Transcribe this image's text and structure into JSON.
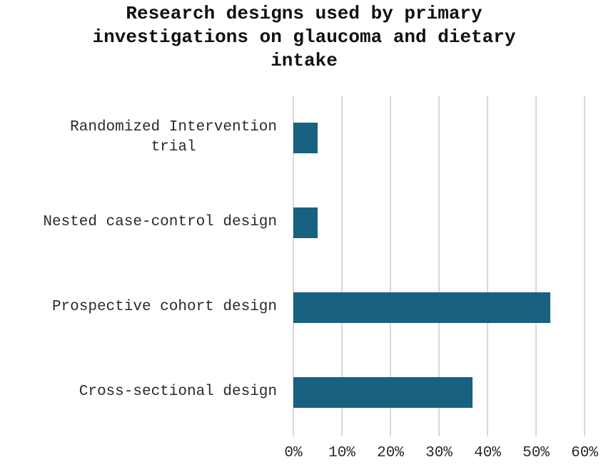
{
  "chart_data": {
    "type": "bar",
    "orientation": "horizontal",
    "title": "Research designs used by primary investigations on glaucoma and dietary intake",
    "categories": [
      "Randomized Intervention trial",
      "Nested case-control design",
      "Prospective cohort design",
      "Cross-sectional design"
    ],
    "values": [
      5,
      5,
      53,
      37
    ],
    "value_unit": "%",
    "xlabel": "",
    "ylabel": "",
    "xlim": [
      0,
      60
    ],
    "xticks": [
      "0%",
      "10%",
      "20%",
      "30%",
      "40%",
      "50%",
      "60%"
    ],
    "grid": "vertical",
    "legend": null,
    "bar_color": "#186180"
  },
  "title_lines": [
    "Research designs used by primary",
    "investigations on glaucoma and dietary",
    "intake"
  ],
  "labels": {
    "cat0": "Randomized Intervention\ntrial",
    "cat1": "Nested case-control design",
    "cat2": "Prospective cohort design",
    "cat3": "Cross-sectional design"
  },
  "ticks": [
    "0%",
    "10%",
    "20%",
    "30%",
    "40%",
    "50%",
    "60%"
  ]
}
